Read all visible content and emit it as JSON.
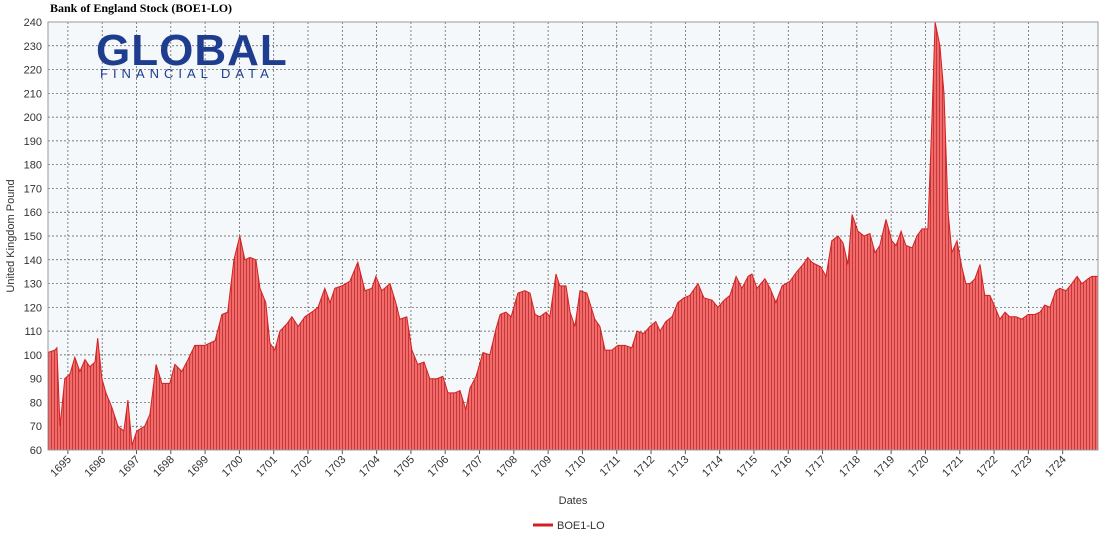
{
  "chart_data": {
    "type": "area",
    "title": "Bank of England Stock (BOE1-LO)",
    "logo": {
      "name": "GLOBAL",
      "tagline": "FINANCIAL DATA"
    },
    "x_label": "Dates",
    "y_label": "United Kingdom Pound",
    "x": [
      1694.42,
      1694.62,
      1694.68,
      1694.77,
      1694.91,
      1695.06,
      1695.2,
      1695.35,
      1695.5,
      1695.64,
      1695.79,
      1695.87,
      1695.99,
      1696.11,
      1696.28,
      1696.46,
      1696.63,
      1696.75,
      1696.87,
      1697.01,
      1697.24,
      1697.39,
      1697.57,
      1697.74,
      1697.97,
      1698.12,
      1698.32,
      1698.5,
      1698.7,
      1698.99,
      1699.29,
      1699.49,
      1699.66,
      1699.84,
      1700.01,
      1700.16,
      1700.31,
      1700.48,
      1700.6,
      1700.77,
      1700.89,
      1701.03,
      1701.18,
      1701.38,
      1701.53,
      1701.71,
      1701.91,
      1702.11,
      1702.29,
      1702.49,
      1702.64,
      1702.78,
      1702.99,
      1703.22,
      1703.45,
      1703.66,
      1703.86,
      1703.98,
      1704.15,
      1704.39,
      1704.56,
      1704.68,
      1704.88,
      1705.03,
      1705.2,
      1705.38,
      1705.55,
      1705.76,
      1705.93,
      1706.08,
      1706.28,
      1706.43,
      1706.6,
      1706.72,
      1706.9,
      1707.1,
      1707.3,
      1707.48,
      1707.6,
      1707.77,
      1707.92,
      1708.12,
      1708.32,
      1708.47,
      1708.62,
      1708.76,
      1708.94,
      1709.05,
      1709.23,
      1709.34,
      1709.52,
      1709.64,
      1709.78,
      1709.93,
      1710.13,
      1710.36,
      1710.51,
      1710.66,
      1710.86,
      1711.03,
      1711.24,
      1711.44,
      1711.59,
      1711.79,
      1711.97,
      1712.14,
      1712.26,
      1712.43,
      1712.61,
      1712.78,
      1712.96,
      1713.13,
      1713.37,
      1713.54,
      1713.78,
      1713.95,
      1714.13,
      1714.3,
      1714.48,
      1714.65,
      1714.83,
      1714.94,
      1715.09,
      1715.32,
      1715.47,
      1715.64,
      1715.82,
      1716.05,
      1716.25,
      1716.43,
      1716.57,
      1716.69,
      1716.81,
      1716.95,
      1717.1,
      1717.27,
      1717.45,
      1717.6,
      1717.74,
      1717.86,
      1718.03,
      1718.21,
      1718.38,
      1718.53,
      1718.67,
      1718.85,
      1719.02,
      1719.14,
      1719.29,
      1719.43,
      1719.61,
      1719.75,
      1719.9,
      1720.07,
      1720.19,
      1720.28,
      1720.42,
      1720.54,
      1720.66,
      1720.77,
      1720.92,
      1721.06,
      1721.18,
      1721.3,
      1721.44,
      1721.59,
      1721.73,
      1721.88,
      1722.03,
      1722.17,
      1722.32,
      1722.46,
      1722.64,
      1722.81,
      1722.99,
      1723.19,
      1723.34,
      1723.48,
      1723.63,
      1723.8,
      1723.92,
      1724.1,
      1724.27,
      1724.42,
      1724.56,
      1724.74,
      1724.85,
      1725.03
    ],
    "series": [
      {
        "name": "BOE1-LO",
        "color": "#d42020",
        "fill": "#f06060",
        "values": [
          101,
          102,
          103,
          70,
          90,
          92,
          99,
          93,
          98,
          95,
          97,
          107,
          90,
          84,
          78,
          70,
          68,
          81,
          62,
          68,
          70,
          75,
          96,
          88,
          88,
          96,
          93,
          98,
          104,
          104,
          106,
          117,
          118,
          140,
          150,
          140,
          141,
          140,
          128,
          122,
          105,
          102,
          110,
          113,
          116,
          112,
          116,
          118,
          120,
          128,
          122,
          128,
          129,
          131,
          139,
          127,
          128,
          133,
          127,
          130,
          122,
          115,
          116,
          102,
          96,
          97,
          90,
          90,
          91,
          84,
          84,
          85,
          77,
          86,
          91,
          101,
          100,
          111,
          117,
          118,
          116,
          126,
          127,
          126,
          117,
          116,
          118,
          116,
          134,
          129,
          129,
          118,
          112,
          127,
          126,
          115,
          112,
          102,
          102,
          104,
          104,
          103,
          110,
          109,
          112,
          114,
          110,
          114,
          116,
          122,
          124,
          125,
          130,
          124,
          123,
          120,
          123,
          125,
          133,
          128,
          133,
          134,
          128,
          132,
          128,
          122,
          129,
          131,
          135,
          138,
          141,
          139,
          138,
          137,
          133,
          148,
          150,
          147,
          138,
          159,
          152,
          150,
          151,
          143,
          146,
          157,
          148,
          146,
          152,
          146,
          145,
          150,
          153,
          153,
          200,
          240,
          230,
          210,
          160,
          143,
          148,
          137,
          130,
          130,
          132,
          138,
          125,
          125,
          120,
          115,
          118,
          116,
          116,
          115,
          117,
          117,
          118,
          121,
          120,
          127,
          128,
          127,
          130,
          133,
          130,
          132,
          133,
          133
        ]
      }
    ],
    "xlim": [
      1694.42,
      1725.03
    ],
    "ylim": [
      60,
      240
    ],
    "xticks": [
      1695,
      1696,
      1697,
      1698,
      1699,
      1700,
      1701,
      1702,
      1703,
      1704,
      1705,
      1706,
      1707,
      1708,
      1709,
      1710,
      1711,
      1712,
      1713,
      1714,
      1715,
      1716,
      1717,
      1718,
      1719,
      1720,
      1721,
      1722,
      1723,
      1724
    ],
    "yticks": [
      60,
      70,
      80,
      90,
      100,
      110,
      120,
      130,
      140,
      150,
      160,
      170,
      180,
      190,
      200,
      210,
      220,
      230,
      240
    ],
    "grid": true
  }
}
